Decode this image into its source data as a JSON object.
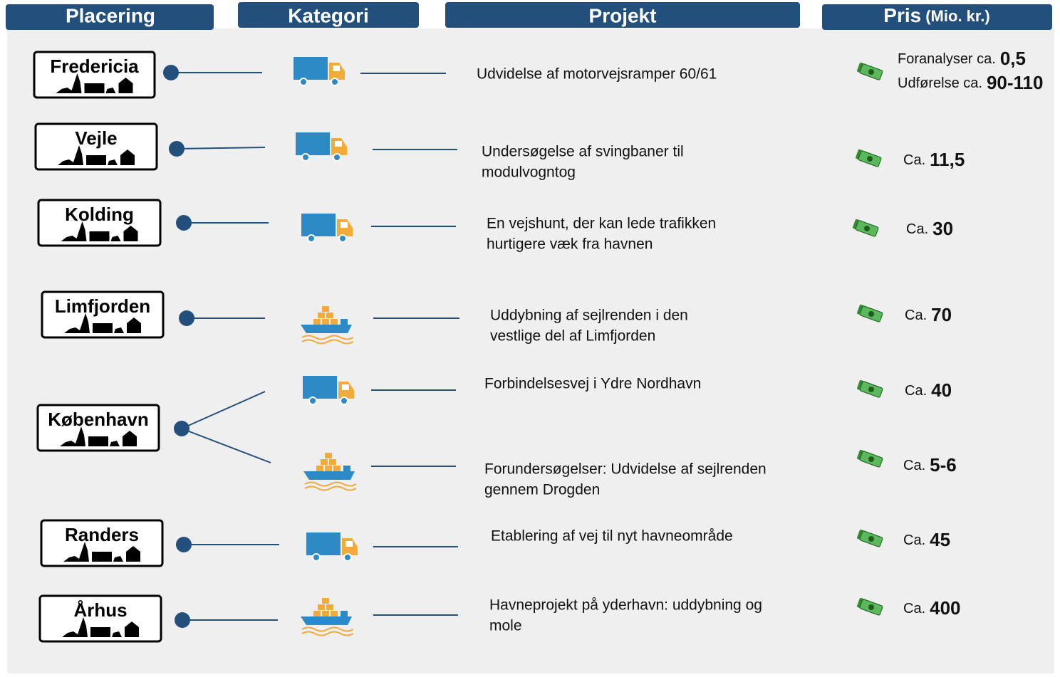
{
  "header": {
    "columns": [
      "Placering",
      "Kategori",
      "Projekt",
      "Pris"
    ],
    "unit": "(Mio. kr.)"
  },
  "rows": [
    {
      "place": "Fredericia",
      "projects": [
        {
          "lines": [
            "Udvidelse af motorvejsramper 60/61"
          ],
          "prices": [
            {
              "prefix": "Foranalyser ca.",
              "value": "0,5"
            },
            {
              "prefix": "Udførelse ca.",
              "value": "90-110"
            }
          ]
        }
      ]
    },
    {
      "place": "Vejle",
      "projects": [
        {
          "lines": [
            "Undersøgelse af svingbaner til",
            "modulvogntog"
          ],
          "prices": [
            {
              "prefix": "Ca.",
              "value": "11,5"
            }
          ]
        }
      ]
    },
    {
      "place": "Kolding",
      "projects": [
        {
          "lines": [
            "En vejshunt, der kan lede trafikken",
            "hurtigere væk fra havnen"
          ],
          "prices": [
            {
              "prefix": "Ca.",
              "value": "30"
            }
          ]
        }
      ]
    },
    {
      "place": "Limfjorden",
      "projects": [
        {
          "lines": [
            "Uddybning af sejlrenden i den",
            "vestlige del af Limfjorden"
          ],
          "prices": [
            {
              "prefix": "Ca.",
              "value": "70"
            }
          ]
        }
      ]
    },
    {
      "place": "København",
      "projects": [
        {
          "lines": [
            "Forbindelsesvej i Ydre Nordhavn"
          ],
          "prices": [
            {
              "prefix": "Ca.",
              "value": "40"
            }
          ]
        },
        {
          "lines": [
            "Forundersøgelser: Udvidelse af sejlrenden",
            "gennem Drogden"
          ],
          "prices": [
            {
              "prefix": "Ca.",
              "value": "5-6"
            }
          ]
        }
      ]
    },
    {
      "place": "Randers",
      "projects": [
        {
          "lines": [
            "Etablering af vej til nyt havneområde"
          ],
          "prices": [
            {
              "prefix": "Ca.",
              "value": "45"
            }
          ]
        }
      ]
    },
    {
      "place": "Århus",
      "projects": [
        {
          "lines": [
            "Havneprojekt på yderhavn: uddybning og",
            "mole"
          ],
          "prices": [
            {
              "prefix": "Ca.",
              "value": "400"
            }
          ]
        }
      ]
    }
  ]
}
